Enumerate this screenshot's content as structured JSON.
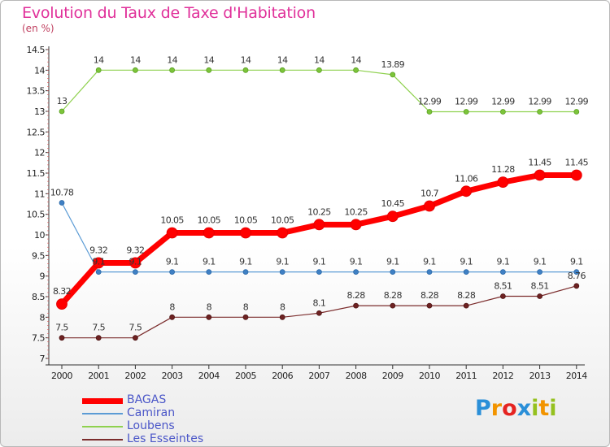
{
  "title": "Evolution du Taux de Taxe d'Habitation",
  "subtitle": "(en %)",
  "chart_data": {
    "type": "line",
    "title": "Evolution du Taux de Taxe d'Habitation",
    "ylabel": "(en %)",
    "x": [
      "2000",
      "2001",
      "2002",
      "2003",
      "2004",
      "2005",
      "2006",
      "2007",
      "2008",
      "2009",
      "2010",
      "2011",
      "2012",
      "2013",
      "2014"
    ],
    "y_ticks": [
      "7",
      "7.5",
      "8",
      "8.5",
      "9",
      "9.5",
      "10",
      "10.5",
      "11",
      "11.5",
      "12",
      "12.5",
      "13",
      "13.5",
      "14",
      "14.5"
    ],
    "ylim": [
      7,
      14.5
    ],
    "grid": false,
    "legend": "bottom-left",
    "series": [
      {
        "name": "BAGAS",
        "color": "#ff0000",
        "values": [
          8.32,
          9.32,
          9.32,
          10.05,
          10.05,
          10.05,
          10.05,
          10.25,
          10.25,
          10.45,
          10.7,
          11.06,
          11.28,
          11.45,
          11.45
        ],
        "labels": [
          "8.32",
          "9.32",
          "9.32",
          "10.05",
          "10.05",
          "10.05",
          "10.05",
          "10.25",
          "10.25",
          "10.45",
          "10.7",
          "11.06",
          "11.28",
          "11.45",
          "11.45"
        ]
      },
      {
        "name": "Camiran",
        "color": "#5b9bd5",
        "values": [
          10.78,
          9.1,
          9.1,
          9.1,
          9.1,
          9.1,
          9.1,
          9.1,
          9.1,
          9.1,
          9.1,
          9.1,
          9.1,
          9.1,
          9.1
        ],
        "labels": [
          "10.78",
          "9.1",
          "9.1",
          "9.1",
          "9.1",
          "9.1",
          "9.1",
          "9.1",
          "9.1",
          "9.1",
          "9.1",
          "9.1",
          "9.1",
          "9.1",
          "9.1"
        ]
      },
      {
        "name": "Loubens",
        "color": "#8fd14f",
        "values": [
          13,
          14,
          14,
          14,
          14,
          14,
          14,
          14,
          14,
          13.89,
          12.99,
          12.99,
          12.99,
          12.99,
          12.99
        ],
        "labels": [
          "13",
          "14",
          "14",
          "14",
          "14",
          "14",
          "14",
          "14",
          "14",
          "13.89",
          "12.99",
          "12.99",
          "12.99",
          "12.99",
          "12.99"
        ]
      },
      {
        "name": "Les Esseintes",
        "color": "#7b2c2c",
        "values": [
          7.5,
          7.5,
          7.5,
          8,
          8,
          8,
          8,
          8.1,
          8.28,
          8.28,
          8.28,
          8.28,
          8.51,
          8.51,
          8.76
        ],
        "labels": [
          "7.5",
          "7.5",
          "7.5",
          "8",
          "8",
          "8",
          "8",
          "8.1",
          "8.28",
          "8.28",
          "8.28",
          "8.28",
          "8.51",
          "8.51",
          "8.76"
        ]
      }
    ]
  },
  "logo": {
    "text": "Proxiti",
    "letters": [
      {
        "ch": "P",
        "color": "#2a8fd8"
      },
      {
        "ch": "r",
        "color": "#f29400"
      },
      {
        "ch": "o",
        "color": "#e52421"
      },
      {
        "ch": "x",
        "color": "#2a8fd8"
      },
      {
        "ch": "i",
        "color": "#95c11f"
      },
      {
        "ch": "t",
        "color": "#f29400"
      },
      {
        "ch": "i",
        "color": "#95c11f"
      }
    ]
  }
}
